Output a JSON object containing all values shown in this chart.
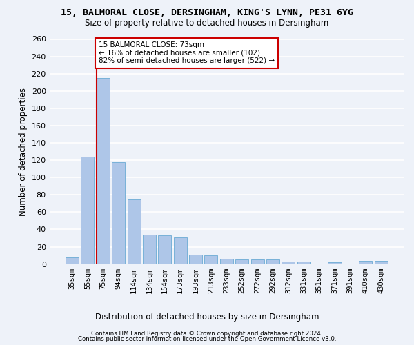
{
  "title1": "15, BALMORAL CLOSE, DERSINGHAM, KING'S LYNN, PE31 6YG",
  "title2": "Size of property relative to detached houses in Dersingham",
  "xlabel": "Distribution of detached houses by size in Dersingham",
  "ylabel": "Number of detached properties",
  "categories": [
    "35sqm",
    "55sqm",
    "75sqm",
    "94sqm",
    "114sqm",
    "134sqm",
    "154sqm",
    "173sqm",
    "193sqm",
    "213sqm",
    "233sqm",
    "252sqm",
    "272sqm",
    "292sqm",
    "312sqm",
    "331sqm",
    "351sqm",
    "371sqm",
    "391sqm",
    "410sqm",
    "430sqm"
  ],
  "values": [
    8,
    124,
    215,
    118,
    75,
    34,
    33,
    31,
    11,
    10,
    6,
    5,
    5,
    5,
    3,
    3,
    0,
    2,
    0,
    4,
    4
  ],
  "bar_color": "#aec6e8",
  "bar_edge_color": "#6aaad4",
  "highlight_color": "#cc0000",
  "annotation_line1": "15 BALMORAL CLOSE: 73sqm",
  "annotation_line2": "← 16% of detached houses are smaller (102)",
  "annotation_line3": "82% of semi-detached houses are larger (522) →",
  "annotation_box_color": "#ffffff",
  "annotation_box_edge": "#cc0000",
  "footer1": "Contains HM Land Registry data © Crown copyright and database right 2024.",
  "footer2": "Contains public sector information licensed under the Open Government Licence v3.0.",
  "bg_color": "#eef2f9",
  "grid_color": "#ffffff",
  "ylim": [
    0,
    260
  ],
  "yticks": [
    0,
    20,
    40,
    60,
    80,
    100,
    120,
    140,
    160,
    180,
    200,
    220,
    240,
    260
  ]
}
